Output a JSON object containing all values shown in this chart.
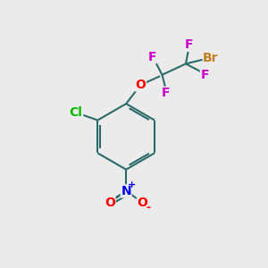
{
  "background_color": "#ebebeb",
  "bond_color": "#2d6b6b",
  "bond_width": 1.5,
  "atom_colors": {
    "Br": "#c08020",
    "F": "#cc00cc",
    "O": "#ff0000",
    "Cl": "#00bb00",
    "N": "#0000ee",
    "O_nitro": "#ff0000",
    "C": "#2d6b6b"
  },
  "font_size_atom": 10,
  "font_size_small": 8,
  "figsize": [
    3.0,
    3.0
  ],
  "dpi": 100
}
